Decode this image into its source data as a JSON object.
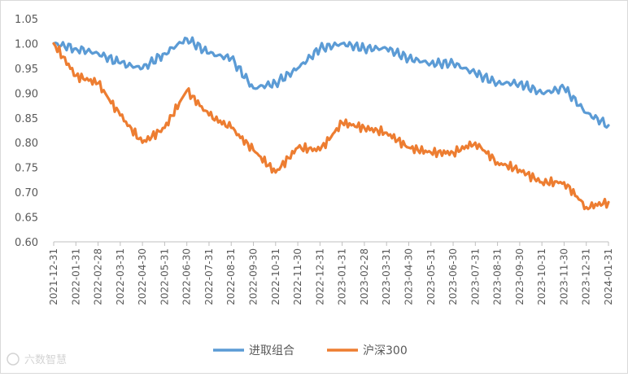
{
  "chart_data": {
    "type": "line",
    "title": "",
    "xlabel": "",
    "ylabel": "",
    "ylim": [
      0.6,
      1.05
    ],
    "yticks": [
      "0.60",
      "0.65",
      "0.70",
      "0.75",
      "0.80",
      "0.85",
      "0.90",
      "0.95",
      "1.00",
      "1.05"
    ],
    "categories": [
      "2021-12-31",
      "2022-01-31",
      "2022-02-28",
      "2022-03-31",
      "2022-04-30",
      "2022-05-31",
      "2022-06-30",
      "2022-07-31",
      "2022-08-31",
      "2022-09-30",
      "2022-10-31",
      "2022-11-30",
      "2022-12-31",
      "2023-01-31",
      "2023-02-28",
      "2023-03-31",
      "2023-04-30",
      "2023-05-31",
      "2023-06-30",
      "2023-07-31",
      "2023-08-31",
      "2023-09-30",
      "2023-10-31",
      "2023-11-30",
      "2023-12-31",
      "2024-01-31"
    ],
    "grid": false,
    "legend_position": "bottom",
    "series": [
      {
        "name": "进取组合",
        "color": "#5b9bd5",
        "values": [
          1.0,
          0.99,
          0.98,
          0.96,
          0.95,
          0.98,
          1.01,
          0.98,
          0.97,
          0.91,
          0.92,
          0.95,
          0.99,
          1.0,
          0.99,
          0.99,
          0.97,
          0.96,
          0.96,
          0.94,
          0.92,
          0.92,
          0.9,
          0.91,
          0.86,
          0.835
        ]
      },
      {
        "name": "沪深300",
        "color": "#ed7d31",
        "values": [
          1.0,
          0.935,
          0.92,
          0.855,
          0.8,
          0.83,
          0.905,
          0.855,
          0.83,
          0.785,
          0.74,
          0.79,
          0.785,
          0.84,
          0.83,
          0.82,
          0.79,
          0.78,
          0.78,
          0.8,
          0.76,
          0.745,
          0.72,
          0.72,
          0.67,
          0.68
        ]
      }
    ]
  },
  "watermark": "六数智慧"
}
